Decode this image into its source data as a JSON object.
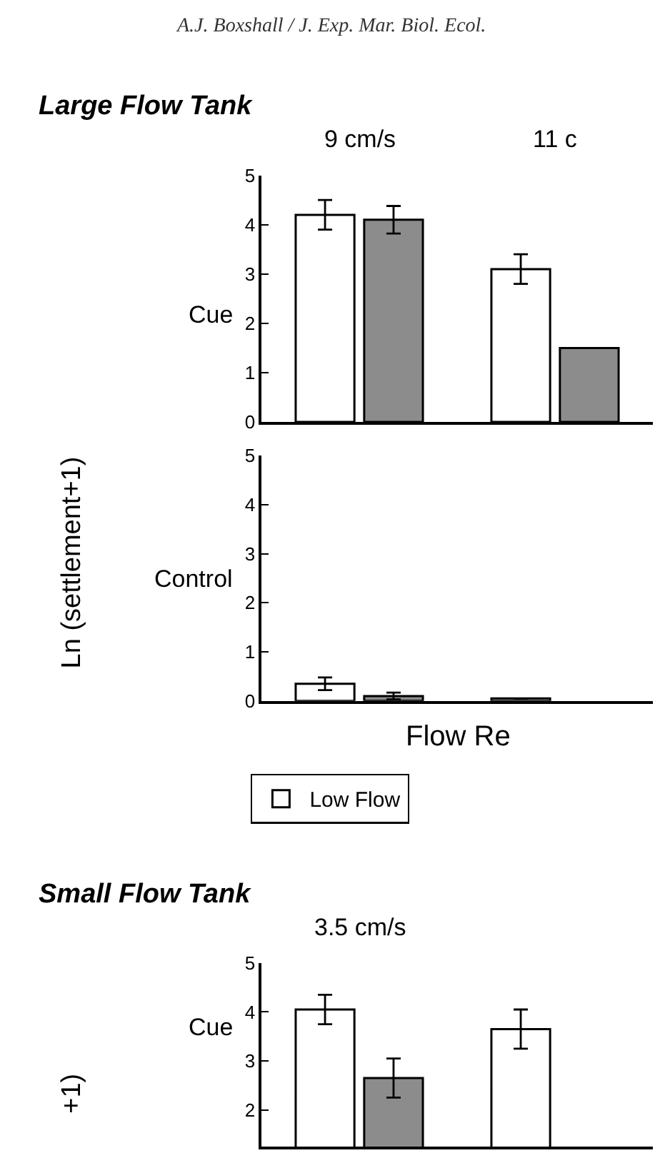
{
  "chart_data": [
    {
      "type": "bar",
      "title": "Large Flow Tank",
      "ylabel": "Cue",
      "annotations": [
        "A.J. Boxshall / J. Exp. Mar. Biol. Ecol.",
        "Ln (settlement+1)"
      ],
      "categories": [
        "9 cm/s",
        "11 c"
      ],
      "series": [
        {
          "color": "#ffffff",
          "values": [
            4.2,
            3.1
          ],
          "errors": [
            0.3,
            0.3
          ]
        },
        {
          "color": "#8c8c8c",
          "values": [
            4.1,
            1.5
          ],
          "errors": [
            0.28,
            null
          ]
        }
      ],
      "ylim": [
        0,
        5
      ],
      "yticks": [
        0,
        1,
        2,
        3,
        4,
        5
      ],
      "legend": false
    },
    {
      "type": "bar",
      "ylabel": "Control",
      "xlabel": "Flow Re",
      "categories": [
        null,
        null
      ],
      "series": [
        {
          "name": "Low Flow",
          "color": "#ffffff",
          "values": [
            0.35,
            0.05
          ],
          "errors": [
            0.13,
            null
          ]
        },
        {
          "color": "#8c8c8c",
          "values": [
            0.1,
            null
          ],
          "errors": [
            0.07,
            null
          ]
        }
      ],
      "ylim": [
        0,
        5
      ],
      "yticks": [
        0,
        1,
        2,
        3,
        4,
        5
      ],
      "legend": "bottom"
    },
    {
      "type": "bar",
      "title": "Small Flow Tank",
      "ylabel": "Cue",
      "annotations": [
        "+1)"
      ],
      "categories": [
        "3.5 cm/s",
        null
      ],
      "series": [
        {
          "color": "#ffffff",
          "values": [
            4.05,
            3.65
          ],
          "errors": [
            0.3,
            0.4
          ]
        },
        {
          "color": "#8c8c8c",
          "values": [
            2.65,
            null
          ],
          "errors": [
            0.4,
            null
          ]
        }
      ],
      "ylim": [
        1.25,
        5
      ],
      "yticks": [
        2,
        3,
        4,
        5
      ],
      "legend": false
    }
  ]
}
